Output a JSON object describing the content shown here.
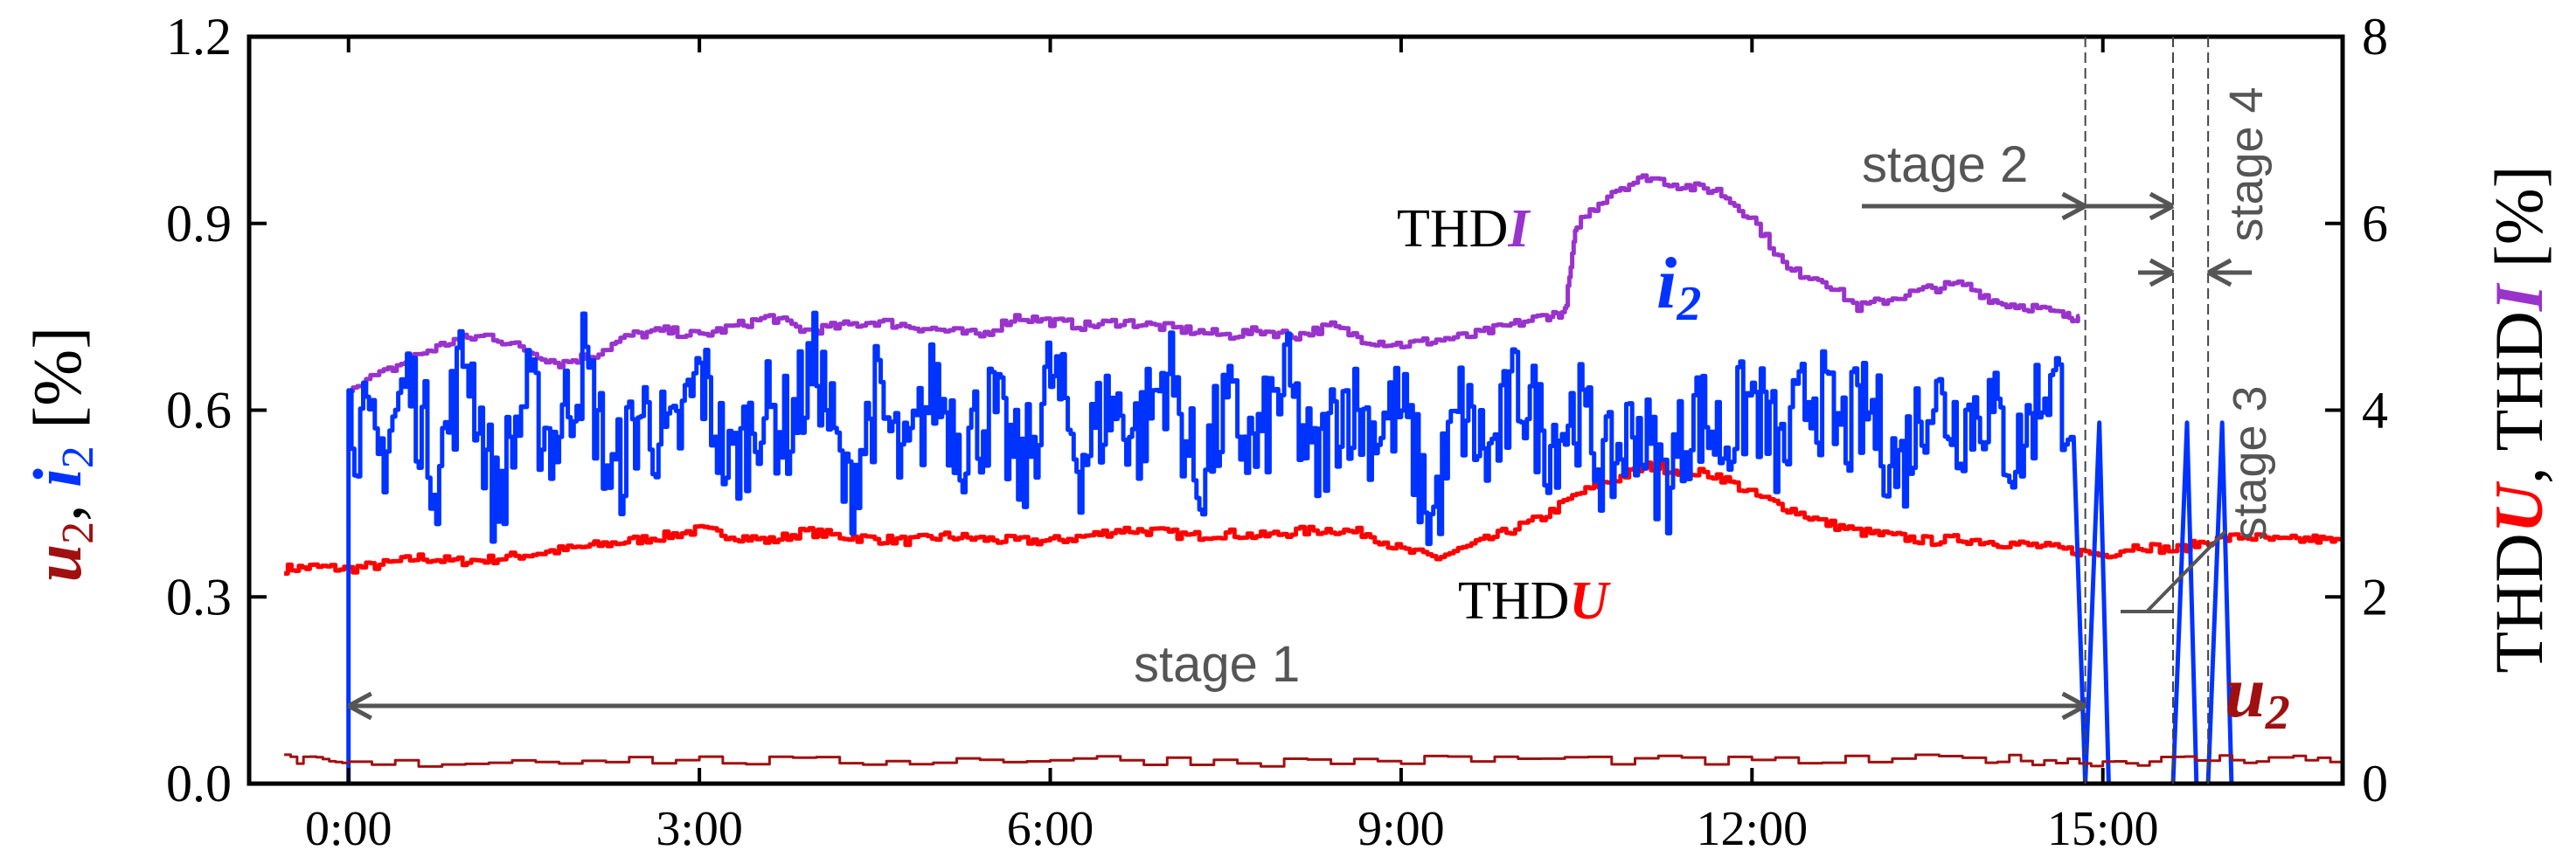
{
  "chart_data": {
    "type": "line",
    "x_unit": "h",
    "xlim": [
      -0.85,
      17.05
    ],
    "ylim_left": [
      0,
      1.2
    ],
    "ylim_right": [
      0,
      8
    ],
    "grid": false,
    "x_ticks": [
      {
        "value": 0,
        "label": "0:00"
      },
      {
        "value": 3,
        "label": "3:00"
      },
      {
        "value": 6,
        "label": "6:00"
      },
      {
        "value": 9,
        "label": "9:00"
      },
      {
        "value": 12,
        "label": "12:00"
      },
      {
        "value": 15,
        "label": "15:00"
      }
    ],
    "y_left_ticks": [
      {
        "value": 0,
        "label": "0.0"
      },
      {
        "value": 0.3,
        "label": "0.3"
      },
      {
        "value": 0.6,
        "label": "0.6"
      },
      {
        "value": 0.9,
        "label": "0.9"
      },
      {
        "value": 1.2,
        "label": "1.2"
      }
    ],
    "y_right_ticks": [
      {
        "value": 0,
        "label": "0"
      },
      {
        "value": 2,
        "label": "2"
      },
      {
        "value": 4,
        "label": "4"
      },
      {
        "value": 6,
        "label": "6"
      },
      {
        "value": 8,
        "label": "8"
      }
    ],
    "ylabel_left": {
      "u": "u",
      "sep": ", ",
      "i": "i",
      "sub": "2",
      "unit": " [%]"
    },
    "ylabel_right": {
      "thd1": "THD",
      "u": "U",
      "sep": ", THD",
      "i": "I",
      "unit": " [%]"
    },
    "series": [
      {
        "name": "THDU",
        "axis": "right",
        "color": "#ff0000",
        "x": [
          -0.55,
          -0.3,
          0,
          0.3,
          0.6,
          0.9,
          1.2,
          1.5,
          1.8,
          2.1,
          2.4,
          2.7,
          3,
          3.3,
          3.6,
          3.9,
          4.2,
          4.5,
          4.8,
          5.1,
          5.4,
          5.7,
          6,
          6.3,
          6.6,
          6.9,
          7.2,
          7.5,
          7.8,
          8.1,
          8.4,
          8.7,
          9,
          9.3,
          9.6,
          9.9,
          10.2,
          10.5,
          10.8,
          11.1,
          11.4,
          11.7,
          12,
          12.3,
          12.6,
          12.9,
          13.2,
          13.5,
          13.8,
          14.1,
          14.4,
          14.7,
          15,
          15.3,
          15.6,
          15.9,
          16.2,
          16.5,
          16.8,
          17.05
        ],
        "values": [
          2.3,
          2.32,
          2.3,
          2.35,
          2.42,
          2.38,
          2.4,
          2.45,
          2.5,
          2.55,
          2.6,
          2.65,
          2.72,
          2.65,
          2.6,
          2.7,
          2.65,
          2.62,
          2.6,
          2.65,
          2.62,
          2.6,
          2.6,
          2.65,
          2.72,
          2.7,
          2.65,
          2.68,
          2.65,
          2.7,
          2.72,
          2.68,
          2.5,
          2.42,
          2.55,
          2.7,
          2.85,
          3.1,
          3.25,
          3.4,
          3.35,
          3.3,
          3.1,
          2.95,
          2.8,
          2.7,
          2.65,
          2.6,
          2.62,
          2.58,
          2.55,
          2.5,
          2.45,
          2.55,
          2.5,
          2.6,
          2.65,
          2.6,
          2.62,
          2.58
        ]
      },
      {
        "name": "THDI",
        "axis": "right",
        "color": "#9933cc",
        "x": [
          0,
          0.3,
          0.6,
          0.9,
          1.2,
          1.5,
          1.8,
          2.1,
          2.4,
          2.7,
          3,
          3.3,
          3.6,
          3.9,
          4.2,
          4.5,
          4.8,
          5.1,
          5.4,
          5.7,
          6,
          6.3,
          6.6,
          6.9,
          7.2,
          7.5,
          7.8,
          8.1,
          8.4,
          8.7,
          9,
          9.3,
          9.6,
          9.9,
          10.2,
          10.4,
          10.5,
          10.8,
          11.1,
          11.4,
          11.7,
          12,
          12.3,
          12.6,
          12.9,
          13.2,
          13.5,
          13.8,
          14.1,
          14.4,
          14.7,
          14.8
        ],
        "values": [
          4.25,
          4.4,
          4.6,
          4.75,
          4.8,
          4.65,
          4.5,
          4.6,
          4.8,
          4.85,
          4.8,
          4.9,
          5.0,
          4.85,
          4.9,
          4.95,
          4.9,
          4.85,
          4.8,
          5.0,
          4.95,
          4.9,
          4.95,
          4.9,
          4.85,
          4.8,
          4.85,
          4.8,
          4.9,
          4.75,
          4.7,
          4.75,
          4.8,
          4.9,
          5.0,
          5.05,
          6.0,
          6.35,
          6.5,
          6.4,
          6.35,
          6.05,
          5.5,
          5.4,
          5.1,
          5.2,
          5.3,
          5.35,
          5.15,
          5.1,
          5.0,
          5.0
        ]
      },
      {
        "name": "i2",
        "axis": "left",
        "color": "#0033ff",
        "x": [
          0,
          0.25,
          0.5,
          0.75,
          1,
          1.25,
          1.5,
          1.75,
          2,
          2.25,
          2.5,
          2.75,
          3,
          3.25,
          3.5,
          3.75,
          4,
          4.25,
          4.5,
          4.75,
          5,
          5.25,
          5.5,
          5.75,
          6,
          6.25,
          6.5,
          6.75,
          7,
          7.25,
          7.5,
          7.75,
          8,
          8.25,
          8.5,
          8.75,
          9,
          9.25,
          9.5,
          9.75,
          10,
          10.25,
          10.5,
          10.75,
          11,
          11.25,
          11.5,
          11.75,
          12,
          12.25,
          12.5,
          12.75,
          13,
          13.25,
          13.5,
          13.75,
          14,
          14.25,
          14.5,
          14.75
        ],
        "values": [
          0.6,
          0.52,
          0.65,
          0.5,
          0.7,
          0.45,
          0.62,
          0.55,
          0.68,
          0.48,
          0.6,
          0.53,
          0.66,
          0.5,
          0.6,
          0.57,
          0.68,
          0.46,
          0.62,
          0.5,
          0.64,
          0.55,
          0.6,
          0.49,
          0.66,
          0.52,
          0.61,
          0.56,
          0.67,
          0.48,
          0.6,
          0.53,
          0.65,
          0.5,
          0.62,
          0.57,
          0.6,
          0.42,
          0.6,
          0.52,
          0.64,
          0.55,
          0.6,
          0.5,
          0.58,
          0.48,
          0.6,
          0.55,
          0.62,
          0.52,
          0.64,
          0.56,
          0.6,
          0.5,
          0.63,
          0.58,
          0.61,
          0.52,
          0.65,
          0.6
        ]
      },
      {
        "name": "u2",
        "axis": "left",
        "color": "#a01010",
        "x": [
          -0.55,
          0,
          2,
          4,
          6,
          8,
          10,
          12,
          14,
          15,
          16,
          17.05
        ],
        "values": [
          0.04,
          0.03,
          0.04,
          0.035,
          0.04,
          0.035,
          0.04,
          0.035,
          0.04,
          0.035,
          0.04,
          0.04
        ]
      }
    ],
    "series_labels": [
      {
        "series": "THDU",
        "prefix": "THD",
        "letter": "U"
      },
      {
        "series": "THDI",
        "prefix": "THD",
        "letter": "I"
      },
      {
        "series": "i2",
        "letter": "i",
        "sub": "2"
      },
      {
        "series": "u2",
        "letter": "u",
        "sub": "2"
      }
    ],
    "stage_boundaries_h": [
      14.85,
      15.6,
      15.9
    ],
    "annotations": [
      {
        "label": "stage 1",
        "from": 0,
        "to": 14.85
      },
      {
        "label": "stage 2",
        "from": 14.85,
        "to": 15.6
      },
      {
        "label": "stage 3",
        "at": 15.6
      },
      {
        "label": "stage 4",
        "from": 15.6,
        "to": 15.9
      }
    ]
  }
}
